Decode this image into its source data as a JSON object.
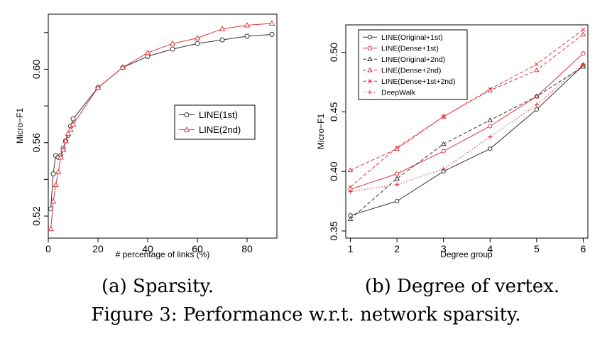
{
  "figure": {
    "caption": "Figure 3: Performance w.r.t. network sparsity."
  },
  "chart_data": [
    {
      "type": "line",
      "subcaption": "(a) Sparsity.",
      "xlabel": "# percentage of links (%)",
      "ylabel": "Micro−F1",
      "xlim": [
        0,
        92
      ],
      "ylim": [
        0.508,
        0.63
      ],
      "xticks": [
        0,
        20,
        40,
        60,
        80
      ],
      "xtick_labels": [
        "0",
        "20",
        "40",
        "60",
        "80"
      ],
      "yticks": [
        0.52,
        0.56,
        0.6
      ],
      "ytick_labels": [
        "0.52",
        "0.56",
        "0.60"
      ],
      "yticks_minor": [
        0.54,
        0.58,
        0.62
      ],
      "grid": false,
      "legend_position": "center-right",
      "series": [
        {
          "name": "LINE(1st)",
          "color": "#333333",
          "marker": "circle",
          "dash": "solid",
          "x": [
            1,
            2,
            3,
            4,
            5,
            6,
            7,
            8,
            9,
            10,
            20,
            30,
            40,
            50,
            60,
            70,
            80,
            90
          ],
          "y": [
            0.524,
            0.543,
            0.553,
            0.552,
            0.553,
            0.557,
            0.561,
            0.564,
            0.569,
            0.573,
            0.59,
            0.601,
            0.607,
            0.611,
            0.614,
            0.616,
            0.618,
            0.619
          ]
        },
        {
          "name": "LINE(2nd)",
          "color": "#e8323a",
          "marker": "triangle",
          "dash": "solid",
          "x": [
            1,
            2,
            3,
            4,
            5,
            6,
            7,
            8,
            9,
            10,
            20,
            30,
            40,
            50,
            60,
            70,
            80,
            90
          ],
          "y": [
            0.513,
            0.528,
            0.537,
            0.544,
            0.552,
            0.556,
            0.561,
            0.565,
            0.567,
            0.57,
            0.59,
            0.601,
            0.609,
            0.614,
            0.617,
            0.622,
            0.624,
            0.625
          ]
        }
      ]
    },
    {
      "type": "line",
      "subcaption": "(b) Degree of vertex.",
      "xlabel": "Degree group",
      "ylabel": "Micro−F1",
      "xlim": [
        0.9,
        6.1
      ],
      "ylim": [
        0.344,
        0.523
      ],
      "xticks": [
        1,
        2,
        3,
        4,
        5,
        6
      ],
      "xtick_labels": [
        "1",
        "2",
        "3",
        "4",
        "5",
        "6"
      ],
      "yticks": [
        0.35,
        0.4,
        0.45,
        0.5
      ],
      "ytick_labels": [
        "0.35",
        "0.40",
        "0.45",
        "0.50"
      ],
      "grid": false,
      "legend_position": "top-left",
      "series": [
        {
          "name": "LINE(Original+1st)",
          "color": "#333333",
          "marker": "circle",
          "dash": "solid",
          "x": [
            1,
            2,
            3,
            4,
            5,
            6
          ],
          "y": [
            0.363,
            0.375,
            0.4,
            0.419,
            0.452,
            0.489
          ]
        },
        {
          "name": "LINE(Dense+1st)",
          "color": "#e8323a",
          "marker": "circle",
          "dash": "solid",
          "x": [
            1,
            2,
            3,
            4,
            5,
            6
          ],
          "y": [
            0.385,
            0.398,
            0.417,
            0.438,
            0.463,
            0.499
          ]
        },
        {
          "name": "LINE(Original+2nd)",
          "color": "#333333",
          "marker": "triangle",
          "dash": "dashed",
          "x": [
            1,
            2,
            3,
            4,
            5,
            6
          ],
          "y": [
            0.36,
            0.394,
            0.423,
            0.443,
            0.463,
            0.488
          ]
        },
        {
          "name": "LINE(Dense+2nd)",
          "color": "#e8323a",
          "marker": "triangle",
          "dash": "dashed",
          "x": [
            1,
            2,
            3,
            4,
            5,
            6
          ],
          "y": [
            0.401,
            0.419,
            0.446,
            0.468,
            0.485,
            0.515
          ]
        },
        {
          "name": "LINE(Dense+1st+2nd)",
          "color": "#e8323a",
          "marker": "cross",
          "dash": "dashed",
          "x": [
            1,
            2,
            3,
            4,
            5,
            6
          ],
          "y": [
            0.387,
            0.42,
            0.446,
            0.469,
            0.49,
            0.519
          ]
        },
        {
          "name": "DeepWalk",
          "color": "#e8323a",
          "marker": "plus",
          "dash": "dotted",
          "x": [
            1,
            2,
            3,
            4,
            5,
            6
          ],
          "y": [
            0.383,
            0.389,
            0.402,
            0.429,
            0.456,
            0.49
          ]
        }
      ]
    }
  ]
}
